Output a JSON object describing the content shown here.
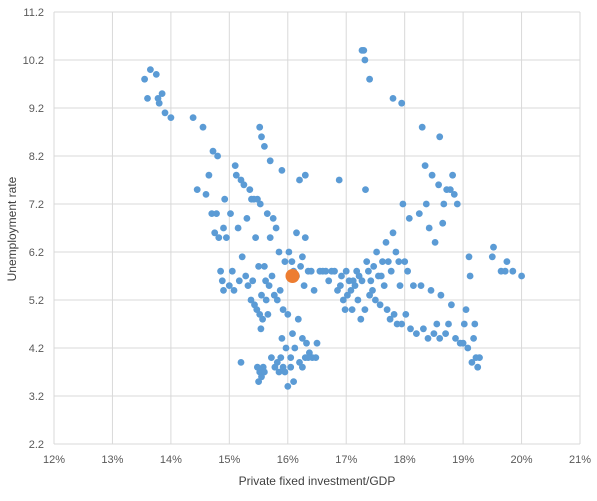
{
  "chart_data": {
    "type": "scatter",
    "xlabel": "Private fixed investment/GDP",
    "ylabel": "Unemployment rate",
    "xlim": [
      0.12,
      0.21
    ],
    "ylim": [
      2.2,
      11.2
    ],
    "x_ticks": [
      "12%",
      "13%",
      "14%",
      "15%",
      "16%",
      "17%",
      "18%",
      "19%",
      "20%",
      "21%"
    ],
    "y_ticks": [
      "2.2",
      "3.2",
      "4.2",
      "5.2",
      "6.2",
      "7.2",
      "8.2",
      "9.2",
      "10.2",
      "11.2"
    ],
    "grid": true,
    "colors": {
      "points": "#5b9bd5",
      "highlight": "#ed7d31",
      "grid": "#d9d9d9"
    },
    "highlight": {
      "x": 0.1608,
      "y": 5.7
    },
    "points": [
      [
        0.1355,
        9.8
      ],
      [
        0.136,
        9.4
      ],
      [
        0.1365,
        10.0
      ],
      [
        0.1375,
        9.9
      ],
      [
        0.1378,
        9.4
      ],
      [
        0.138,
        9.3
      ],
      [
        0.1385,
        9.5
      ],
      [
        0.139,
        9.1
      ],
      [
        0.14,
        9.0
      ],
      [
        0.1438,
        9.0
      ],
      [
        0.1455,
        8.8
      ],
      [
        0.1445,
        7.5
      ],
      [
        0.146,
        7.4
      ],
      [
        0.1465,
        7.8
      ],
      [
        0.147,
        7.0
      ],
      [
        0.1472,
        8.3
      ],
      [
        0.1475,
        6.6
      ],
      [
        0.1478,
        7.0
      ],
      [
        0.148,
        8.2
      ],
      [
        0.1482,
        6.5
      ],
      [
        0.1485,
        5.8
      ],
      [
        0.1488,
        5.6
      ],
      [
        0.149,
        6.7
      ],
      [
        0.149,
        5.4
      ],
      [
        0.1492,
        7.3
      ],
      [
        0.1495,
        6.5
      ],
      [
        0.15,
        5.5
      ],
      [
        0.1502,
        7.0
      ],
      [
        0.1505,
        5.8
      ],
      [
        0.1508,
        5.4
      ],
      [
        0.151,
        8.0
      ],
      [
        0.1512,
        7.8
      ],
      [
        0.1515,
        6.7
      ],
      [
        0.1517,
        5.6
      ],
      [
        0.152,
        7.7
      ],
      [
        0.1522,
        6.1
      ],
      [
        0.1525,
        7.6
      ],
      [
        0.1528,
        5.7
      ],
      [
        0.153,
        6.9
      ],
      [
        0.1532,
        5.5
      ],
      [
        0.1535,
        7.5
      ],
      [
        0.1537,
        5.2
      ],
      [
        0.1538,
        7.3
      ],
      [
        0.154,
        5.6
      ],
      [
        0.1542,
        7.3
      ],
      [
        0.1543,
        5.1
      ],
      [
        0.1545,
        6.5
      ],
      [
        0.1547,
        5.0
      ],
      [
        0.1548,
        7.3
      ],
      [
        0.155,
        5.9
      ],
      [
        0.1552,
        8.8
      ],
      [
        0.1552,
        4.9
      ],
      [
        0.1553,
        7.2
      ],
      [
        0.1554,
        4.6
      ],
      [
        0.1555,
        8.6
      ],
      [
        0.1555,
        5.3
      ],
      [
        0.1557,
        4.8
      ],
      [
        0.156,
        8.4
      ],
      [
        0.156,
        5.9
      ],
      [
        0.1562,
        5.6
      ],
      [
        0.1563,
        5.2
      ],
      [
        0.1565,
        7.0
      ],
      [
        0.1566,
        4.9
      ],
      [
        0.1568,
        5.5
      ],
      [
        0.157,
        6.5
      ],
      [
        0.157,
        8.1
      ],
      [
        0.1573,
        5.7
      ],
      [
        0.1575,
        6.9
      ],
      [
        0.1577,
        5.3
      ],
      [
        0.158,
        6.7
      ],
      [
        0.1582,
        5.2
      ],
      [
        0.1585,
        6.2
      ],
      [
        0.1587,
        5.4
      ],
      [
        0.159,
        7.9
      ],
      [
        0.159,
        4.4
      ],
      [
        0.1592,
        5.0
      ],
      [
        0.1595,
        6.0
      ],
      [
        0.1597,
        4.2
      ],
      [
        0.16,
        4.9
      ],
      [
        0.1602,
        6.2
      ],
      [
        0.1605,
        4.0
      ],
      [
        0.1607,
        6.0
      ],
      [
        0.1608,
        4.5
      ],
      [
        0.161,
        5.8
      ],
      [
        0.1612,
        4.2
      ],
      [
        0.1615,
        5.7
      ],
      [
        0.1615,
        6.6
      ],
      [
        0.1618,
        4.8
      ],
      [
        0.162,
        7.7
      ],
      [
        0.1622,
        5.9
      ],
      [
        0.1625,
        6.1
      ],
      [
        0.1625,
        4.4
      ],
      [
        0.1628,
        5.5
      ],
      [
        0.163,
        7.8
      ],
      [
        0.163,
        6.5
      ],
      [
        0.1632,
        4.3
      ],
      [
        0.1635,
        5.8
      ],
      [
        0.1637,
        4.1
      ],
      [
        0.164,
        5.8
      ],
      [
        0.1642,
        4.0
      ],
      [
        0.1645,
        5.4
      ],
      [
        0.1648,
        4.0
      ],
      [
        0.165,
        4.3
      ],
      [
        0.1655,
        5.8
      ],
      [
        0.166,
        5.8
      ],
      [
        0.152,
        3.9
      ],
      [
        0.1548,
        3.8
      ],
      [
        0.155,
        3.5
      ],
      [
        0.1552,
        3.7
      ],
      [
        0.1555,
        3.6
      ],
      [
        0.1558,
        3.8
      ],
      [
        0.156,
        3.7
      ],
      [
        0.1572,
        4.0
      ],
      [
        0.1578,
        3.8
      ],
      [
        0.1582,
        3.9
      ],
      [
        0.1585,
        3.7
      ],
      [
        0.1588,
        4.0
      ],
      [
        0.1592,
        3.8
      ],
      [
        0.1595,
        3.7
      ],
      [
        0.16,
        3.4
      ],
      [
        0.1605,
        3.8
      ],
      [
        0.161,
        3.5
      ],
      [
        0.162,
        3.9
      ],
      [
        0.1625,
        3.8
      ],
      [
        0.163,
        4.0
      ],
      [
        0.1635,
        4.0
      ],
      [
        0.1665,
        5.8
      ],
      [
        0.167,
        5.6
      ],
      [
        0.1675,
        5.8
      ],
      [
        0.168,
        5.8
      ],
      [
        0.1685,
        5.4
      ],
      [
        0.1688,
        7.7
      ],
      [
        0.169,
        5.5
      ],
      [
        0.1692,
        5.7
      ],
      [
        0.1695,
        5.2
      ],
      [
        0.1698,
        5.0
      ],
      [
        0.17,
        5.8
      ],
      [
        0.1702,
        5.3
      ],
      [
        0.1705,
        5.6
      ],
      [
        0.1708,
        5.4
      ],
      [
        0.171,
        5.0
      ],
      [
        0.1712,
        5.6
      ],
      [
        0.1715,
        5.5
      ],
      [
        0.1718,
        5.8
      ],
      [
        0.172,
        5.2
      ],
      [
        0.1722,
        5.7
      ],
      [
        0.1725,
        4.8
      ],
      [
        0.1727,
        5.6
      ],
      [
        0.1727,
        10.4
      ],
      [
        0.173,
        10.4
      ],
      [
        0.1732,
        10.2
      ],
      [
        0.1732,
        5.0
      ],
      [
        0.1735,
        6.0
      ],
      [
        0.1733,
        7.5
      ],
      [
        0.1738,
        5.8
      ],
      [
        0.174,
        9.8
      ],
      [
        0.174,
        5.3
      ],
      [
        0.1742,
        5.6
      ],
      [
        0.1745,
        5.4
      ],
      [
        0.1747,
        5.9
      ],
      [
        0.175,
        5.2
      ],
      [
        0.1752,
        6.2
      ],
      [
        0.1755,
        5.7
      ],
      [
        0.1758,
        5.1
      ],
      [
        0.176,
        5.7
      ],
      [
        0.1762,
        6.0
      ],
      [
        0.1765,
        5.5
      ],
      [
        0.1768,
        6.4
      ],
      [
        0.177,
        5.0
      ],
      [
        0.1772,
        6.0
      ],
      [
        0.1775,
        4.8
      ],
      [
        0.1777,
        5.8
      ],
      [
        0.178,
        9.4
      ],
      [
        0.178,
        6.6
      ],
      [
        0.1782,
        4.9
      ],
      [
        0.1785,
        6.2
      ],
      [
        0.1787,
        4.7
      ],
      [
        0.179,
        6.0
      ],
      [
        0.1792,
        5.5
      ],
      [
        0.1795,
        9.3
      ],
      [
        0.1795,
        4.7
      ],
      [
        0.1797,
        7.2
      ],
      [
        0.18,
        6.0
      ],
      [
        0.1802,
        4.9
      ],
      [
        0.1805,
        5.8
      ],
      [
        0.1808,
        6.9
      ],
      [
        0.181,
        4.6
      ],
      [
        0.1815,
        5.5
      ],
      [
        0.182,
        4.5
      ],
      [
        0.1825,
        7.0
      ],
      [
        0.1828,
        5.5
      ],
      [
        0.183,
        8.8
      ],
      [
        0.1832,
        4.6
      ],
      [
        0.1835,
        8.0
      ],
      [
        0.1837,
        7.2
      ],
      [
        0.184,
        4.4
      ],
      [
        0.1842,
        6.7
      ],
      [
        0.1845,
        5.4
      ],
      [
        0.1847,
        7.8
      ],
      [
        0.185,
        4.5
      ],
      [
        0.1852,
        6.4
      ],
      [
        0.1855,
        4.7
      ],
      [
        0.1858,
        7.6
      ],
      [
        0.186,
        8.6
      ],
      [
        0.186,
        4.4
      ],
      [
        0.1862,
        5.3
      ],
      [
        0.1865,
        6.8
      ],
      [
        0.1867,
        7.2
      ],
      [
        0.187,
        4.5
      ],
      [
        0.1872,
        7.5
      ],
      [
        0.1875,
        4.7
      ],
      [
        0.1878,
        7.5
      ],
      [
        0.188,
        5.1
      ],
      [
        0.1882,
        7.8
      ],
      [
        0.1885,
        7.4
      ],
      [
        0.1887,
        4.4
      ],
      [
        0.189,
        7.2
      ],
      [
        0.1895,
        4.3
      ],
      [
        0.19,
        4.3
      ],
      [
        0.1902,
        4.7
      ],
      [
        0.1905,
        5.0
      ],
      [
        0.1908,
        4.2
      ],
      [
        0.191,
        6.1
      ],
      [
        0.1912,
        5.7
      ],
      [
        0.1915,
        3.9
      ],
      [
        0.1918,
        4.4
      ],
      [
        0.192,
        4.7
      ],
      [
        0.1922,
        4.0
      ],
      [
        0.1925,
        3.8
      ],
      [
        0.1928,
        4.0
      ],
      [
        0.195,
        6.1
      ],
      [
        0.1952,
        6.3
      ],
      [
        0.1965,
        5.8
      ],
      [
        0.1972,
        5.8
      ],
      [
        0.1975,
        6.0
      ],
      [
        0.1985,
        5.8
      ],
      [
        0.2,
        5.7
      ]
    ]
  }
}
